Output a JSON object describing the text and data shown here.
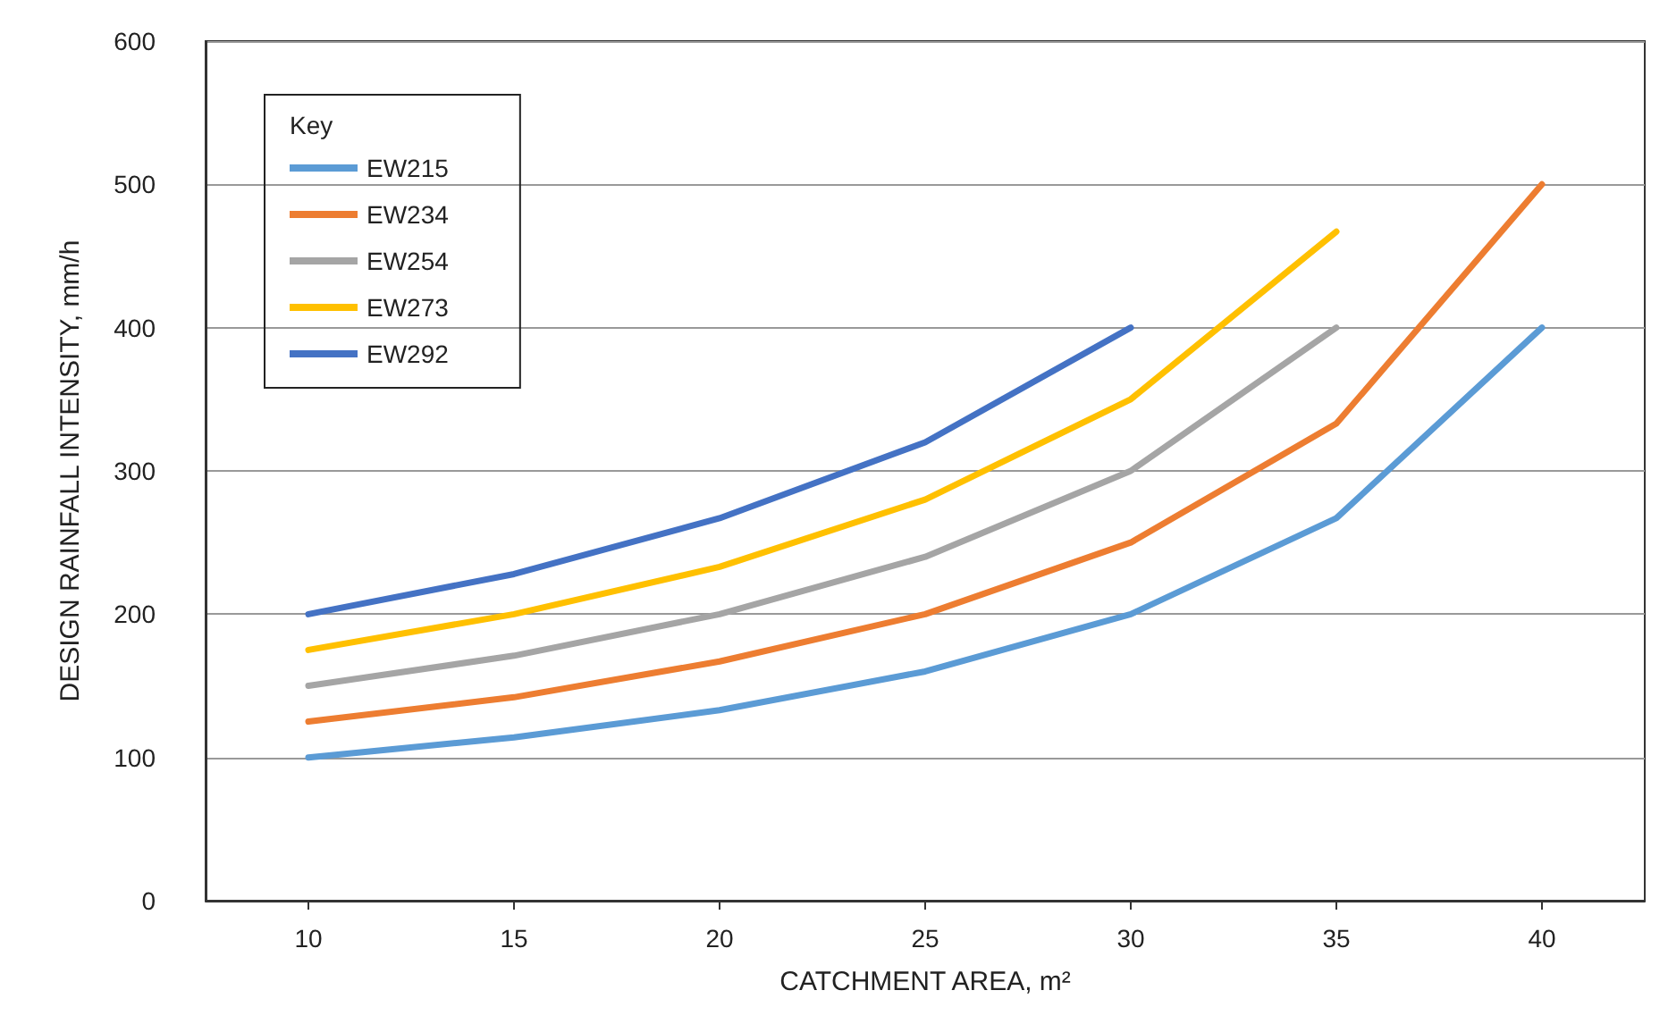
{
  "chart_data": {
    "type": "line",
    "xlabel": "CATCHMENT AREA, m²",
    "ylabel": "DESIGN RAINFALL INTENSITY, mm/h",
    "legend_title": "Key",
    "legend": "top left",
    "grid": "y",
    "marker": "none",
    "line_style": "solid",
    "xlim": [
      7.5,
      42.5
    ],
    "xticks": [
      10,
      15,
      20,
      25,
      30,
      35,
      40
    ],
    "ylim": [
      0,
      600
    ],
    "yticks": [
      0,
      100,
      200,
      300,
      400,
      500,
      600
    ],
    "series": [
      {
        "name": "EW215",
        "color": "#5b9bd5",
        "x": [
          10,
          15,
          20,
          25,
          30,
          35,
          40
        ],
        "values": [
          100,
          114,
          133,
          160,
          200,
          267,
          400
        ]
      },
      {
        "name": "EW234",
        "color": "#ed7d31",
        "x": [
          10,
          15,
          20,
          25,
          30,
          35,
          40
        ],
        "values": [
          125,
          142,
          167,
          200,
          250,
          333,
          500
        ]
      },
      {
        "name": "EW254",
        "color": "#a5a5a5",
        "x": [
          10,
          15,
          20,
          25,
          30,
          35
        ],
        "values": [
          150,
          171,
          200,
          240,
          300,
          400
        ]
      },
      {
        "name": "EW273",
        "color": "#ffc000",
        "x": [
          10,
          15,
          20,
          25,
          30,
          35
        ],
        "values": [
          175,
          200,
          233,
          280,
          350,
          467
        ]
      },
      {
        "name": "EW292",
        "color": "#4472c4",
        "x": [
          10,
          15,
          20,
          25,
          30
        ],
        "values": [
          200,
          228,
          267,
          320,
          400
        ]
      }
    ]
  }
}
